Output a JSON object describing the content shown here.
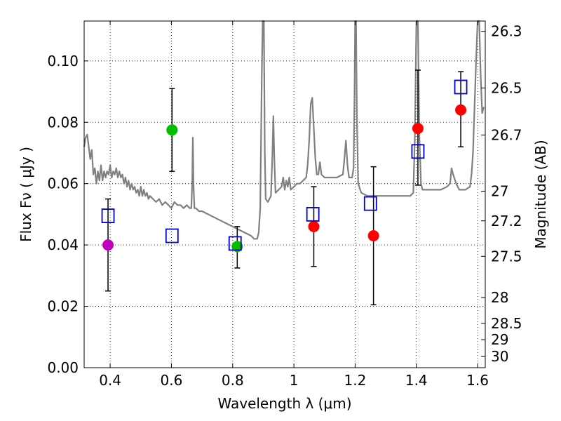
{
  "chart_data": {
    "type": "scatter",
    "xlabel": "Wavelength  λ (μm)",
    "ylabel": "Flux  Fν  ( μJy )",
    "ylabel2": "Magnitude (AB)",
    "xlim": [
      0.315,
      1.625
    ],
    "ylim": [
      0.0,
      0.113
    ],
    "xticks": [
      0.4,
      0.6,
      0.8,
      1.0,
      1.2,
      1.4,
      1.6
    ],
    "xtick_labels": [
      "0.4",
      "0.6",
      "0.8",
      "1",
      "1.2",
      "1.4",
      "1.6"
    ],
    "yticks": [
      0.0,
      0.02,
      0.04,
      0.06,
      0.08,
      0.1
    ],
    "ytick_labels": [
      "0.00",
      "0.02",
      "0.04",
      "0.06",
      "0.08",
      "0.10"
    ],
    "mag_ticks": [
      26.3,
      26.5,
      26.7,
      27.0,
      27.2,
      27.5,
      28.0,
      28.5,
      29.0,
      30.0
    ],
    "mag_tick_labels": [
      "26.3",
      "26.5",
      "26.7",
      "27",
      "27.2",
      "27.5",
      "28",
      "28.5",
      "29",
      "30"
    ],
    "grid": true,
    "colors": {
      "magenta": "#bf00bf",
      "green": "#00bf00",
      "red": "#ff0000",
      "model_box": "#0000cc",
      "spectrum": "#808080",
      "errorbar": "#000000"
    },
    "observed": [
      {
        "x": 0.393,
        "y": 0.04,
        "yerr_low": 0.025,
        "yerr_high": 0.055,
        "color": "magenta"
      },
      {
        "x": 0.602,
        "y": 0.0775,
        "yerr_low": 0.064,
        "yerr_high": 0.091,
        "color": "green"
      },
      {
        "x": 0.815,
        "y": 0.0395,
        "yerr_low": 0.0325,
        "yerr_high": 0.046,
        "color": "green"
      },
      {
        "x": 1.065,
        "y": 0.046,
        "yerr_low": 0.033,
        "yerr_high": 0.059,
        "color": "red"
      },
      {
        "x": 1.26,
        "y": 0.043,
        "yerr_low": 0.0205,
        "yerr_high": 0.0655,
        "color": "red"
      },
      {
        "x": 1.405,
        "y": 0.078,
        "yerr_low": 0.0595,
        "yerr_high": 0.097,
        "color": "red"
      },
      {
        "x": 1.545,
        "y": 0.084,
        "yerr_low": 0.072,
        "yerr_high": 0.0965,
        "color": "red"
      }
    ],
    "model_fluxes": [
      {
        "x": 0.393,
        "y": 0.0495
      },
      {
        "x": 0.602,
        "y": 0.043
      },
      {
        "x": 0.808,
        "y": 0.0405
      },
      {
        "x": 1.062,
        "y": 0.05
      },
      {
        "x": 1.25,
        "y": 0.0535
      },
      {
        "x": 1.405,
        "y": 0.0705
      },
      {
        "x": 1.545,
        "y": 0.0915
      }
    ],
    "spectrum": [
      [
        0.315,
        0.072
      ],
      [
        0.32,
        0.075
      ],
      [
        0.325,
        0.076
      ],
      [
        0.33,
        0.072
      ],
      [
        0.335,
        0.068
      ],
      [
        0.34,
        0.071
      ],
      [
        0.345,
        0.063
      ],
      [
        0.35,
        0.065
      ],
      [
        0.355,
        0.06
      ],
      [
        0.36,
        0.064
      ],
      [
        0.365,
        0.061
      ],
      [
        0.37,
        0.066
      ],
      [
        0.375,
        0.061
      ],
      [
        0.38,
        0.064
      ],
      [
        0.385,
        0.062
      ],
      [
        0.39,
        0.064
      ],
      [
        0.395,
        0.063
      ],
      [
        0.4,
        0.066
      ],
      [
        0.405,
        0.062
      ],
      [
        0.41,
        0.064
      ],
      [
        0.415,
        0.063
      ],
      [
        0.42,
        0.065
      ],
      [
        0.425,
        0.062
      ],
      [
        0.43,
        0.064
      ],
      [
        0.435,
        0.062
      ],
      [
        0.44,
        0.063
      ],
      [
        0.445,
        0.06
      ],
      [
        0.45,
        0.062
      ],
      [
        0.455,
        0.059
      ],
      [
        0.46,
        0.061
      ],
      [
        0.465,
        0.058
      ],
      [
        0.47,
        0.06
      ],
      [
        0.475,
        0.058
      ],
      [
        0.48,
        0.059
      ],
      [
        0.485,
        0.057
      ],
      [
        0.49,
        0.058
      ],
      [
        0.495,
        0.056
      ],
      [
        0.5,
        0.059
      ],
      [
        0.505,
        0.056
      ],
      [
        0.51,
        0.058
      ],
      [
        0.515,
        0.056
      ],
      [
        0.52,
        0.057
      ],
      [
        0.525,
        0.055
      ],
      [
        0.53,
        0.056
      ],
      [
        0.54,
        0.055
      ],
      [
        0.55,
        0.054
      ],
      [
        0.56,
        0.055
      ],
      [
        0.57,
        0.053
      ],
      [
        0.58,
        0.054
      ],
      [
        0.59,
        0.053
      ],
      [
        0.6,
        0.052
      ],
      [
        0.61,
        0.054
      ],
      [
        0.62,
        0.053
      ],
      [
        0.63,
        0.053
      ],
      [
        0.64,
        0.052
      ],
      [
        0.65,
        0.053
      ],
      [
        0.66,
        0.052
      ],
      [
        0.665,
        0.052
      ],
      [
        0.668,
        0.06
      ],
      [
        0.67,
        0.075
      ],
      [
        0.672,
        0.06
      ],
      [
        0.675,
        0.052
      ],
      [
        0.68,
        0.052
      ],
      [
        0.69,
        0.051
      ],
      [
        0.7,
        0.051
      ],
      [
        0.72,
        0.05
      ],
      [
        0.74,
        0.049
      ],
      [
        0.76,
        0.048
      ],
      [
        0.78,
        0.047
      ],
      [
        0.8,
        0.046
      ],
      [
        0.82,
        0.045
      ],
      [
        0.84,
        0.044
      ],
      [
        0.86,
        0.043
      ],
      [
        0.87,
        0.042
      ],
      [
        0.88,
        0.042
      ],
      [
        0.885,
        0.044
      ],
      [
        0.89,
        0.052
      ],
      [
        0.895,
        0.095
      ],
      [
        0.898,
        0.113
      ],
      [
        0.902,
        0.113
      ],
      [
        0.905,
        0.07
      ],
      [
        0.908,
        0.055
      ],
      [
        0.915,
        0.054
      ],
      [
        0.925,
        0.056
      ],
      [
        0.93,
        0.07
      ],
      [
        0.933,
        0.082
      ],
      [
        0.936,
        0.068
      ],
      [
        0.94,
        0.057
      ],
      [
        0.95,
        0.058
      ],
      [
        0.96,
        0.059
      ],
      [
        0.965,
        0.062
      ],
      [
        0.97,
        0.058
      ],
      [
        0.975,
        0.061
      ],
      [
        0.98,
        0.059
      ],
      [
        0.985,
        0.062
      ],
      [
        0.99,
        0.058
      ],
      [
        1.0,
        0.059
      ],
      [
        1.01,
        0.06
      ],
      [
        1.02,
        0.06
      ],
      [
        1.03,
        0.061
      ],
      [
        1.04,
        0.062
      ],
      [
        1.045,
        0.066
      ],
      [
        1.05,
        0.074
      ],
      [
        1.055,
        0.086
      ],
      [
        1.06,
        0.088
      ],
      [
        1.065,
        0.078
      ],
      [
        1.07,
        0.068
      ],
      [
        1.075,
        0.063
      ],
      [
        1.08,
        0.063
      ],
      [
        1.085,
        0.067
      ],
      [
        1.09,
        0.063
      ],
      [
        1.1,
        0.062
      ],
      [
        1.12,
        0.062
      ],
      [
        1.14,
        0.062
      ],
      [
        1.16,
        0.063
      ],
      [
        1.165,
        0.068
      ],
      [
        1.17,
        0.074
      ],
      [
        1.175,
        0.066
      ],
      [
        1.18,
        0.062
      ],
      [
        1.19,
        0.062
      ],
      [
        1.195,
        0.065
      ],
      [
        1.198,
        0.09
      ],
      [
        1.2,
        0.113
      ],
      [
        1.203,
        0.113
      ],
      [
        1.206,
        0.08
      ],
      [
        1.21,
        0.06
      ],
      [
        1.22,
        0.057
      ],
      [
        1.24,
        0.056
      ],
      [
        1.26,
        0.056
      ],
      [
        1.28,
        0.056
      ],
      [
        1.3,
        0.056
      ],
      [
        1.32,
        0.056
      ],
      [
        1.34,
        0.056
      ],
      [
        1.36,
        0.056
      ],
      [
        1.38,
        0.056
      ],
      [
        1.39,
        0.057
      ],
      [
        1.395,
        0.075
      ],
      [
        1.4,
        0.113
      ],
      [
        1.405,
        0.113
      ],
      [
        1.41,
        0.075
      ],
      [
        1.415,
        0.06
      ],
      [
        1.42,
        0.058
      ],
      [
        1.44,
        0.058
      ],
      [
        1.46,
        0.058
      ],
      [
        1.48,
        0.058
      ],
      [
        1.5,
        0.059
      ],
      [
        1.51,
        0.06
      ],
      [
        1.515,
        0.065
      ],
      [
        1.52,
        0.063
      ],
      [
        1.53,
        0.06
      ],
      [
        1.54,
        0.058
      ],
      [
        1.56,
        0.058
      ],
      [
        1.575,
        0.059
      ],
      [
        1.58,
        0.063
      ],
      [
        1.585,
        0.07
      ],
      [
        1.59,
        0.085
      ],
      [
        1.595,
        0.1
      ],
      [
        1.6,
        0.113
      ],
      [
        1.605,
        0.113
      ],
      [
        1.61,
        0.095
      ],
      [
        1.615,
        0.083
      ],
      [
        1.62,
        0.085
      ]
    ]
  }
}
